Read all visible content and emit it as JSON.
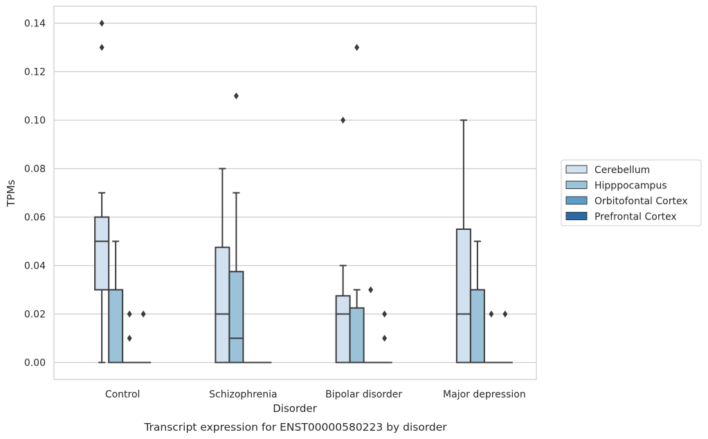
{
  "chart_data": {
    "type": "box",
    "xlabel": "Disorder",
    "ylabel": "TPMs",
    "caption": "Transcript expression for ENST00000580223 by disorder",
    "categories": [
      "Control",
      "Schizophrenia",
      "Bipolar disorder",
      "Major depression"
    ],
    "ylim": [
      -0.007,
      0.147
    ],
    "yticks": [
      0.0,
      0.02,
      0.04,
      0.06,
      0.08,
      0.1,
      0.12,
      0.14
    ],
    "ytick_labels": [
      "0.00",
      "0.02",
      "0.04",
      "0.06",
      "0.08",
      "0.10",
      "0.12",
      "0.14"
    ],
    "grid": "horizontal",
    "legend_position": "right",
    "series": [
      {
        "name": "Cerebellum",
        "color": "#d1e1ef",
        "boxes": [
          {
            "q1": 0.03,
            "median": 0.05,
            "q3": 0.06,
            "whisker_low": 0.0,
            "whisker_high": 0.07,
            "outliers": [
              0.13,
              0.14
            ]
          },
          {
            "q1": 0.0,
            "median": 0.02,
            "q3": 0.0475,
            "whisker_low": 0.0,
            "whisker_high": 0.08,
            "outliers": []
          },
          {
            "q1": 0.0,
            "median": 0.02,
            "q3": 0.0275,
            "whisker_low": 0.0,
            "whisker_high": 0.04,
            "outliers": [
              0.1
            ]
          },
          {
            "q1": 0.0,
            "median": 0.02,
            "q3": 0.055,
            "whisker_low": 0.0,
            "whisker_high": 0.1,
            "outliers": []
          }
        ]
      },
      {
        "name": "Hipppocampus",
        "color": "#9ac2d9",
        "boxes": [
          {
            "q1": 0.0,
            "median": 0.0,
            "q3": 0.03,
            "whisker_low": 0.0,
            "whisker_high": 0.05,
            "outliers": []
          },
          {
            "q1": 0.0,
            "median": 0.01,
            "q3": 0.0375,
            "whisker_low": 0.0,
            "whisker_high": 0.07,
            "outliers": [
              0.11
            ]
          },
          {
            "q1": 0.0,
            "median": 0.0,
            "q3": 0.0225,
            "whisker_low": 0.0,
            "whisker_high": 0.03,
            "outliers": [
              0.13
            ]
          },
          {
            "q1": 0.0,
            "median": 0.0,
            "q3": 0.03,
            "whisker_low": 0.0,
            "whisker_high": 0.05,
            "outliers": []
          }
        ]
      },
      {
        "name": "Orbitofontal Cortex",
        "color": "#5a9ec8",
        "boxes": [
          {
            "q1": 0.0,
            "median": 0.0,
            "q3": 0.0,
            "whisker_low": 0.0,
            "whisker_high": 0.0,
            "outliers": [
              0.01,
              0.02
            ]
          },
          {
            "q1": 0.0,
            "median": 0.0,
            "q3": 0.0,
            "whisker_low": 0.0,
            "whisker_high": 0.0,
            "outliers": []
          },
          {
            "q1": 0.0,
            "median": 0.0,
            "q3": 0.0,
            "whisker_low": 0.0,
            "whisker_high": 0.0,
            "outliers": [
              0.03
            ]
          },
          {
            "q1": 0.0,
            "median": 0.0,
            "q3": 0.0,
            "whisker_low": 0.0,
            "whisker_high": 0.0,
            "outliers": [
              0.02
            ]
          }
        ]
      },
      {
        "name": "Prefrontal Cortex",
        "color": "#2b6aa8",
        "boxes": [
          {
            "q1": 0.0,
            "median": 0.0,
            "q3": 0.0,
            "whisker_low": 0.0,
            "whisker_high": 0.0,
            "outliers": [
              0.02
            ]
          },
          {
            "q1": 0.0,
            "median": 0.0,
            "q3": 0.0,
            "whisker_low": 0.0,
            "whisker_high": 0.0,
            "outliers": []
          },
          {
            "q1": 0.0,
            "median": 0.0,
            "q3": 0.0,
            "whisker_low": 0.0,
            "whisker_high": 0.0,
            "outliers": [
              0.01,
              0.02
            ]
          },
          {
            "q1": 0.0,
            "median": 0.0,
            "q3": 0.0,
            "whisker_low": 0.0,
            "whisker_high": 0.0,
            "outliers": [
              0.02
            ]
          }
        ]
      }
    ]
  }
}
